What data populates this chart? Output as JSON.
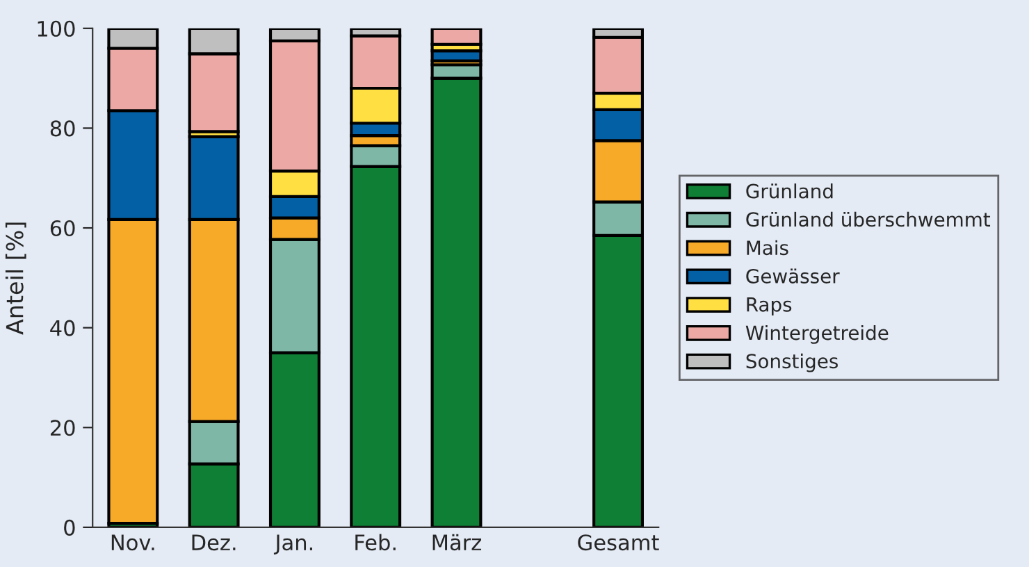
{
  "chart_data": {
    "type": "bar",
    "stacked": true,
    "ylabel": "Anteil [%]",
    "categories": [
      "Nov.",
      "Dez.",
      "Jan.",
      "Feb.",
      "März",
      null,
      "Gesamt"
    ],
    "series": [
      {
        "name": "Grünland",
        "color": "#107f36",
        "values": [
          0.8,
          12.7,
          35.0,
          72.3,
          90.0,
          null,
          58.5
        ]
      },
      {
        "name": "Grünland überschwemmt",
        "color": "#7fb7a7",
        "values": [
          0,
          8.5,
          22.7,
          4.2,
          2.7,
          null,
          6.7
        ]
      },
      {
        "name": "Mais",
        "color": "#f7a928",
        "values": [
          60.9,
          40.5,
          4.3,
          2.0,
          0.8,
          null,
          12.3
        ]
      },
      {
        "name": "Gewässer",
        "color": "#0460a4",
        "values": [
          21.8,
          16.6,
          4.3,
          2.5,
          2.0,
          null,
          6.2
        ]
      },
      {
        "name": "Raps",
        "color": "#ffdf42",
        "values": [
          0,
          1.0,
          5.1,
          7.0,
          1.3,
          null,
          3.3
        ]
      },
      {
        "name": "Wintergetreide",
        "color": "#eca8a5",
        "values": [
          12.5,
          15.6,
          26.1,
          10.5,
          3.2,
          null,
          11.2
        ]
      },
      {
        "name": "Sonstiges",
        "color": "#bfbfbf",
        "values": [
          4.0,
          5.1,
          2.5,
          1.5,
          0,
          null,
          1.8
        ]
      }
    ],
    "ylim": [
      0,
      100
    ],
    "yticks": [
      0,
      20,
      40,
      60,
      80,
      100
    ],
    "grid": false,
    "legend": "right"
  }
}
